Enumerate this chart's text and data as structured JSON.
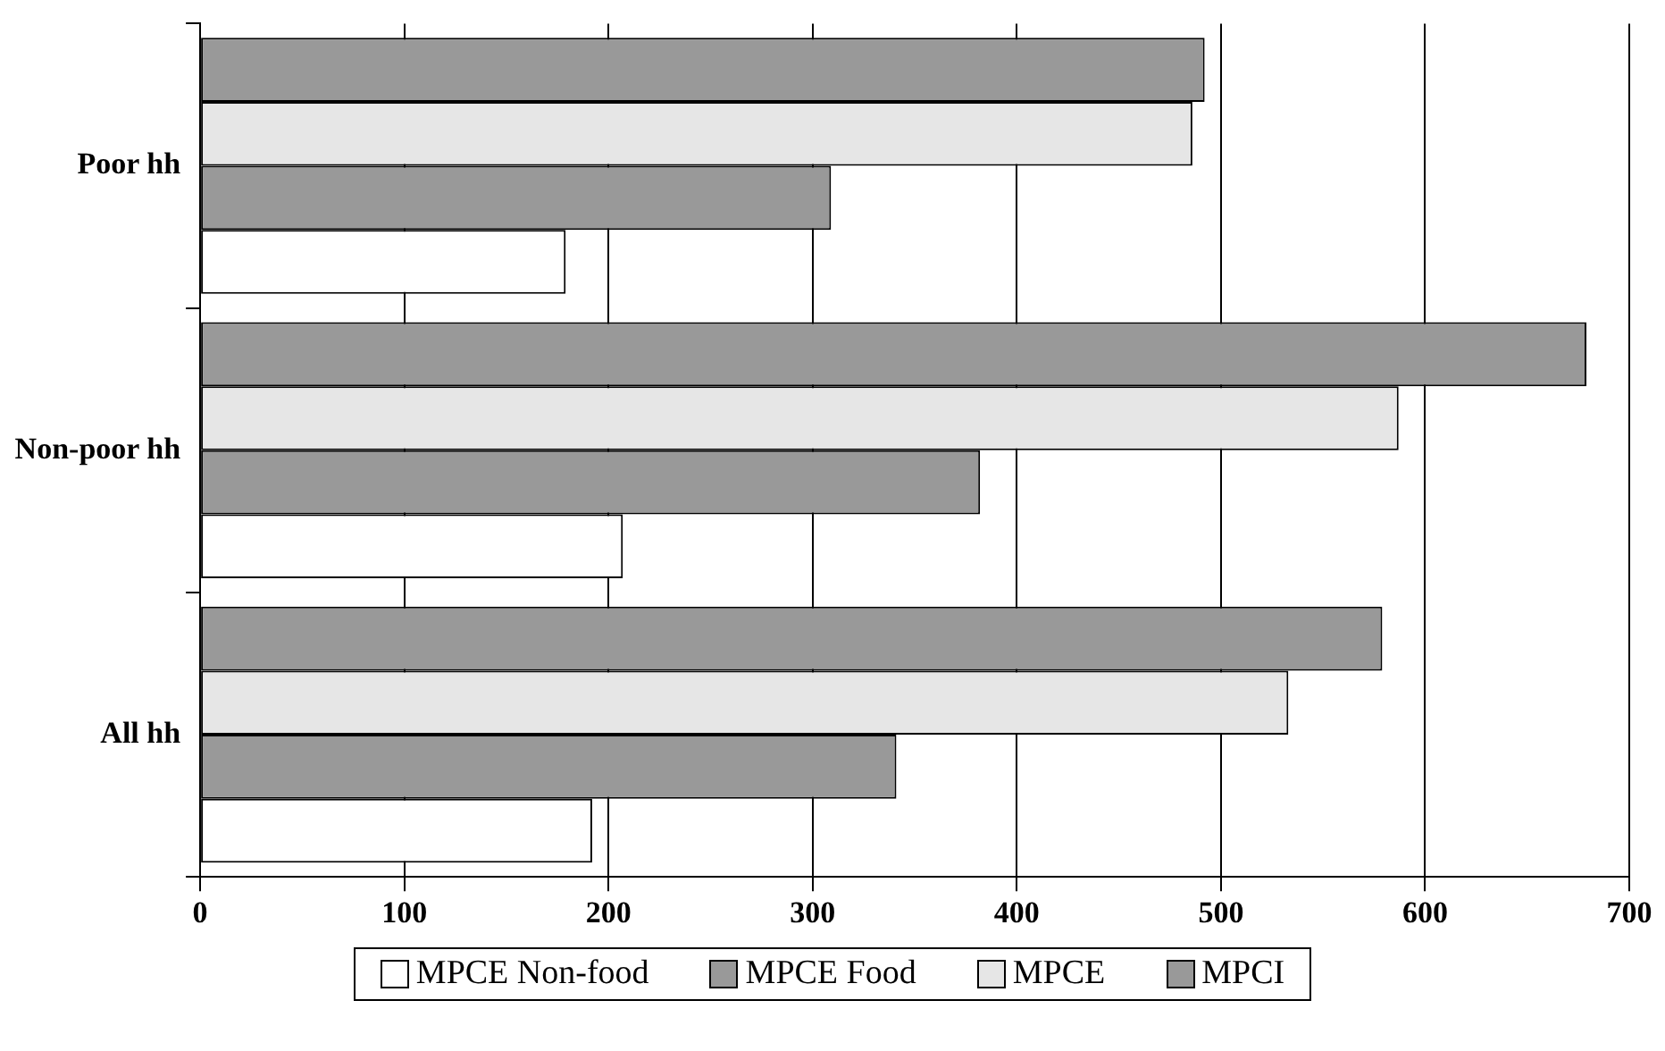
{
  "chart_data": {
    "type": "bar",
    "orientation": "horizontal",
    "categories": [
      "Poor hh",
      "Non-poor hh",
      "All hh"
    ],
    "series": [
      {
        "name": "MPCE Non-food",
        "color": "#ffffff",
        "values": [
          179,
          207,
          192
        ]
      },
      {
        "name": "MPCE Food",
        "color": "#999999",
        "values": [
          309,
          382,
          341
        ]
      },
      {
        "name": "MPCE",
        "color": "#e6e6e6",
        "values": [
          486,
          587,
          533
        ]
      },
      {
        "name": "MPCI",
        "color": "#999999",
        "values": [
          492,
          679,
          579
        ]
      }
    ],
    "xlim": [
      0,
      700
    ],
    "xticks": [
      0,
      100,
      200,
      300,
      400,
      500,
      600,
      700
    ],
    "grid": "x",
    "legend": "bottom"
  }
}
